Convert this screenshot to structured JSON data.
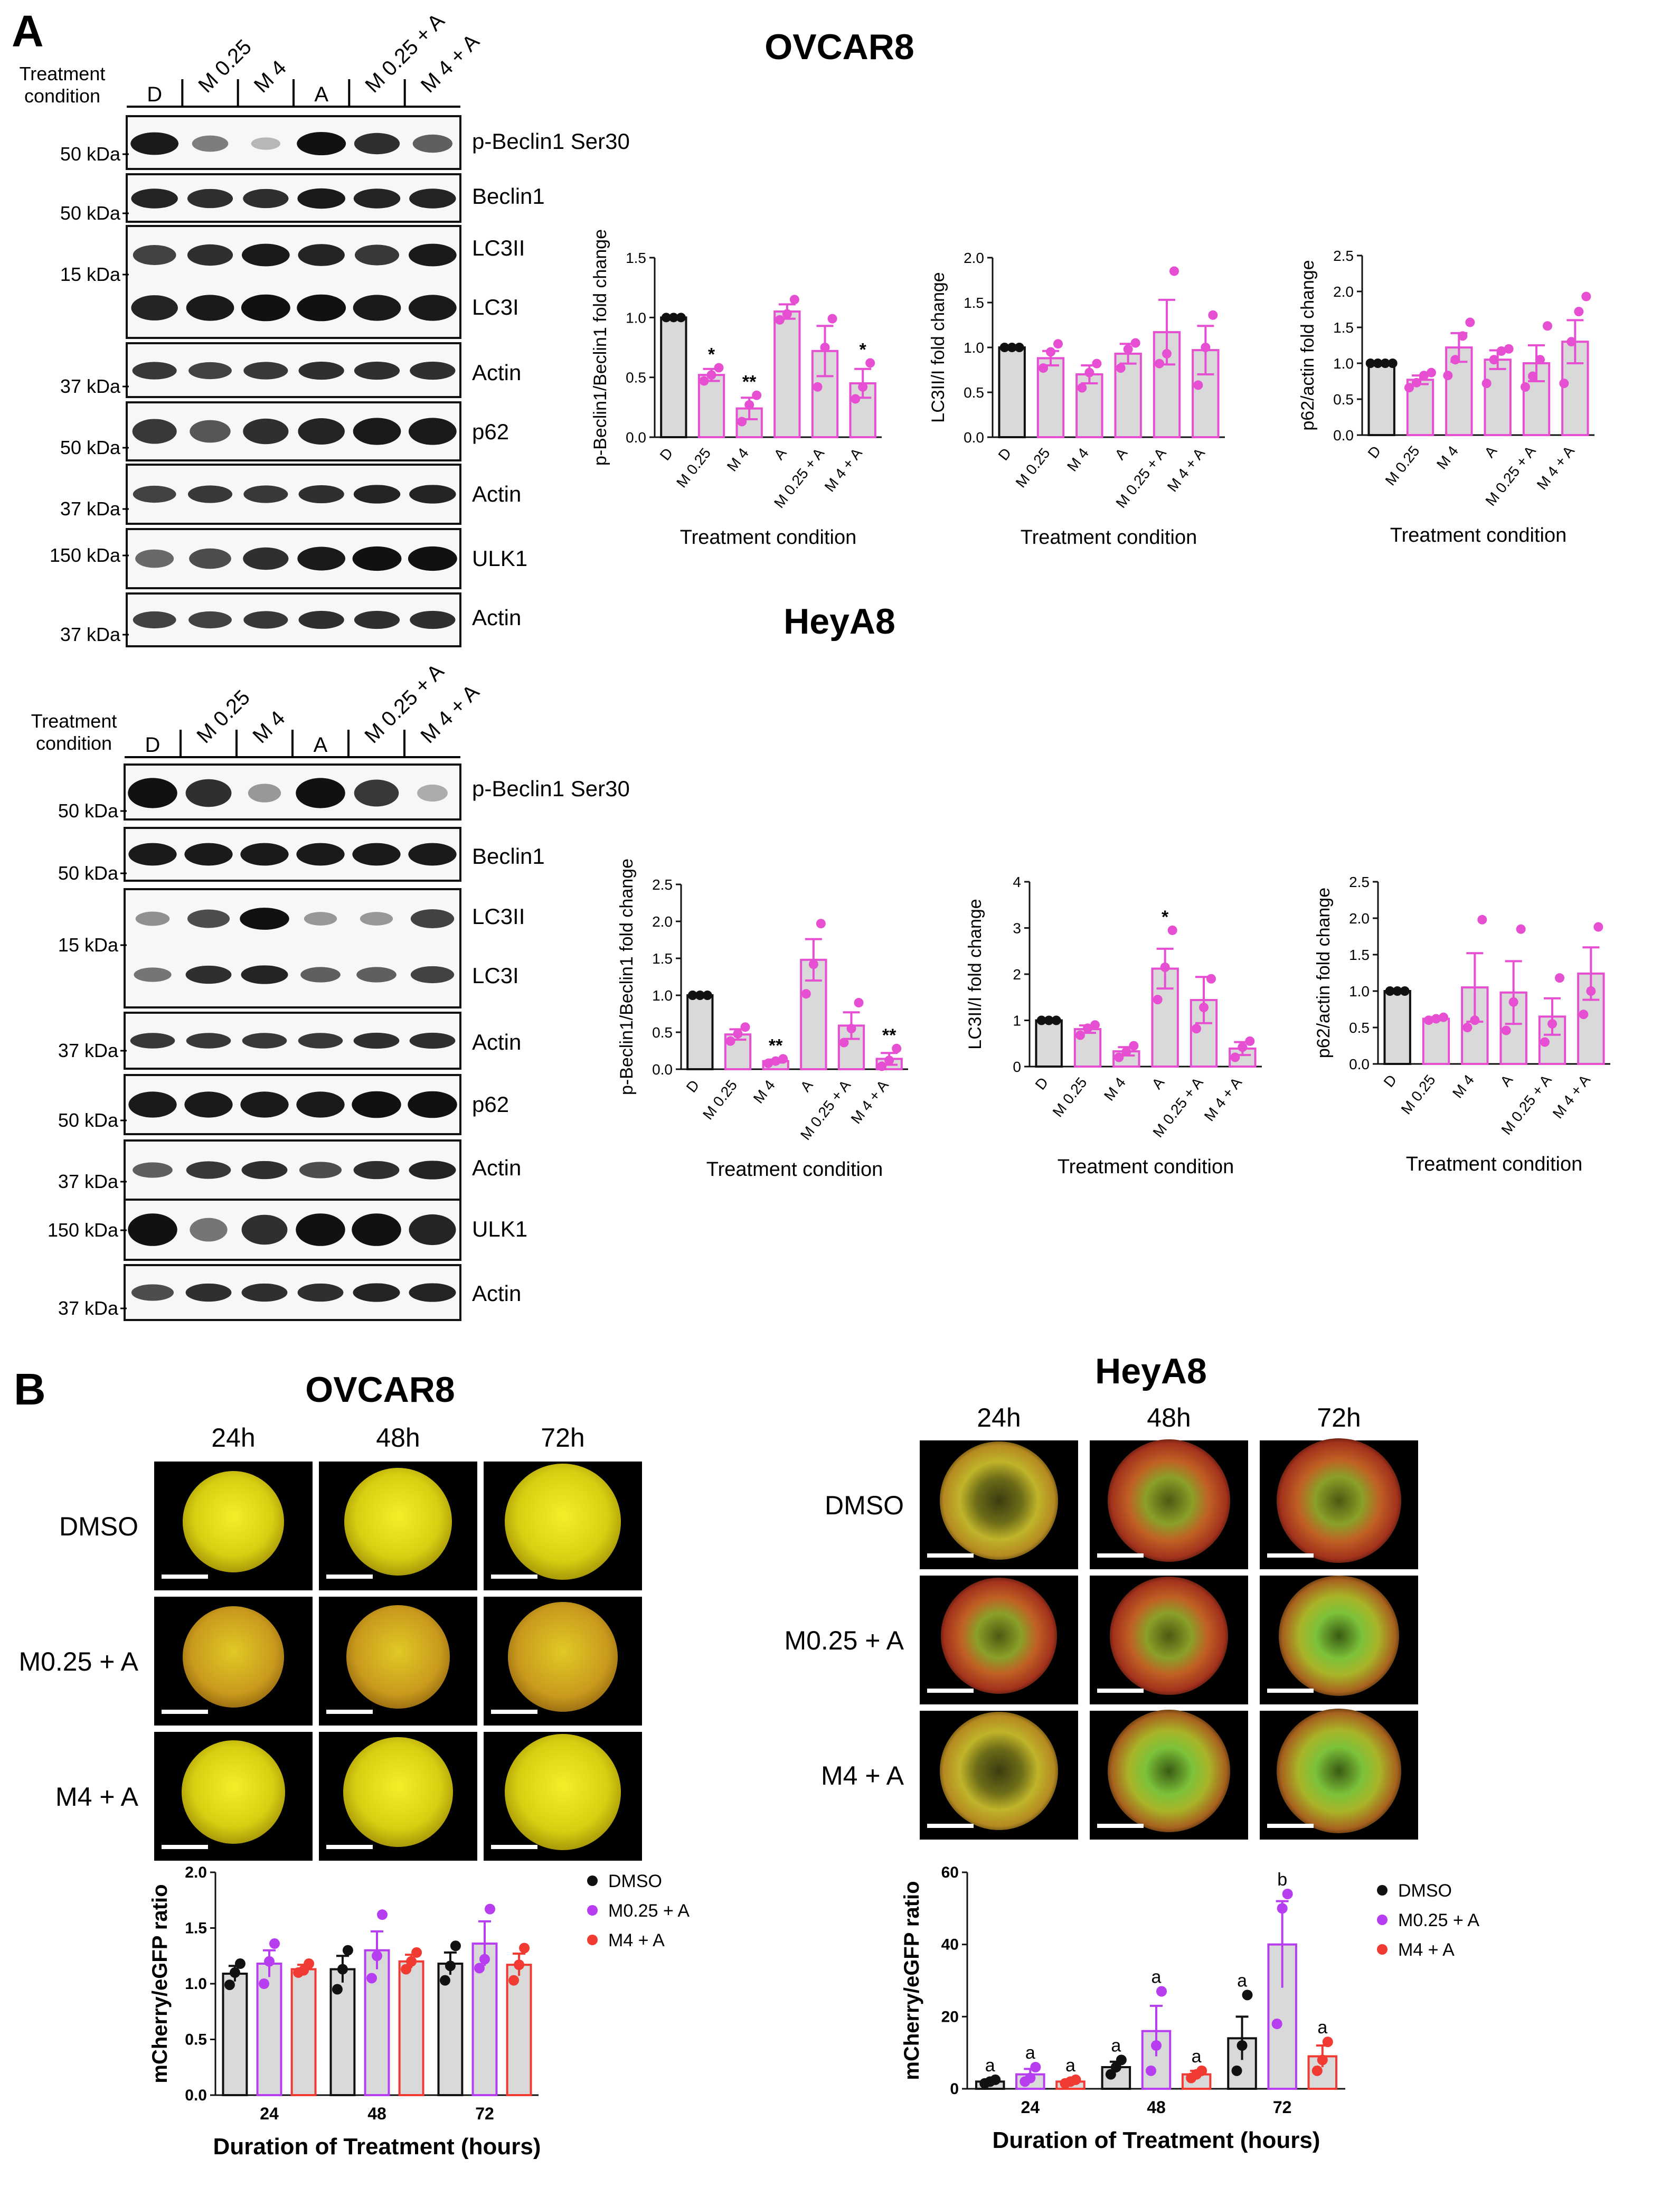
{
  "figure": {
    "panel_a_label": "A",
    "panel_b_label": "B",
    "lanes": [
      "D",
      "M 0.25",
      "M 4",
      "A",
      "M 0.25 + A",
      "M 4 + A"
    ],
    "treatment_condition": "Treatment condition",
    "colors": {
      "drug": "#e64fd2",
      "control": "#111111",
      "bar_fill": "#d9d9d9",
      "dmso": "#111111",
      "m025a": "#b63ef0",
      "m4a": "#f03a32"
    }
  },
  "ovcar8_blots": {
    "title": "OVCAR8",
    "header": "Treatment condition",
    "markers": [
      "50 kDa",
      "50 kDa",
      "15 kDa",
      "37 kDa",
      "50 kDa",
      "37 kDa",
      "150 kDa",
      "37 kDa"
    ],
    "proteins": [
      "p-Beclin1 Ser30",
      "Beclin1",
      "LC3II",
      "LC3I",
      "Actin",
      "p62",
      "Actin",
      "ULK1",
      "Actin"
    ]
  },
  "heya8_blots": {
    "title": "HeyA8",
    "header": "Treatment condition",
    "markers": [
      "50 kDa",
      "50 kDa",
      "15 kDa",
      "37 kDa",
      "50 kDa",
      "37 kDa",
      "150 kDa",
      "37 kDa"
    ],
    "proteins": [
      "p-Beclin1 Ser30",
      "Beclin1",
      "LC3II",
      "LC3I",
      "Actin",
      "p62",
      "Actin",
      "ULK1",
      "Actin"
    ]
  },
  "chart_data": [
    {
      "id": "ovcar8-pbeclin",
      "type": "bar",
      "categories": [
        "D",
        "M 0.25",
        "M 4",
        "A",
        "M 0.25 + A",
        "M 4 + A"
      ],
      "values": [
        1.0,
        0.52,
        0.24,
        1.05,
        0.72,
        0.45
      ],
      "errors": [
        0.0,
        0.05,
        0.09,
        0.06,
        0.21,
        0.12
      ],
      "points": [
        [
          1,
          1,
          1
        ],
        [
          0.47,
          0.52,
          0.58
        ],
        [
          0.13,
          0.27,
          0.35
        ],
        [
          0.98,
          1.03,
          1.15
        ],
        [
          0.42,
          0.75,
          0.99
        ],
        [
          0.32,
          0.42,
          0.62
        ]
      ],
      "significance": [
        "",
        "*",
        "**",
        "",
        "",
        "*"
      ],
      "ylabel": "p-Beclin1/Beclin1 fold change",
      "xlabel": "Treatment condition",
      "ylim": [
        0,
        1.5
      ],
      "yticks": [
        "0.0",
        "0.5",
        "1.0",
        "1.5"
      ]
    },
    {
      "id": "ovcar8-lc3",
      "type": "bar",
      "categories": [
        "D",
        "M 0.25",
        "M 4",
        "A",
        "M 0.25 + A",
        "M 4 + A"
      ],
      "values": [
        1.0,
        0.88,
        0.7,
        0.93,
        1.17,
        0.97
      ],
      "errors": [
        0.0,
        0.08,
        0.1,
        0.11,
        0.36,
        0.27
      ],
      "points": [
        [
          1,
          1,
          1
        ],
        [
          0.77,
          0.95,
          1.04
        ],
        [
          0.55,
          0.72,
          0.82
        ],
        [
          0.77,
          0.98,
          1.05
        ],
        [
          0.82,
          0.93,
          1.85
        ],
        [
          0.58,
          1.0,
          1.36
        ]
      ],
      "significance": [
        "",
        "",
        "",
        "",
        "",
        ""
      ],
      "ylabel": "LC3II/I fold change",
      "xlabel": "Treatment condition",
      "ylim": [
        0,
        2.0
      ],
      "yticks": [
        "0.0",
        "0.5",
        "1.0",
        "1.5",
        "2.0"
      ]
    },
    {
      "id": "ovcar8-p62",
      "type": "bar",
      "categories": [
        "D",
        "M 0.25",
        "M 4",
        "A",
        "M 0.25 + A",
        "M 4 + A"
      ],
      "values": [
        1.0,
        0.77,
        1.22,
        1.05,
        1.0,
        1.3
      ],
      "errors": [
        0.0,
        0.06,
        0.2,
        0.13,
        0.25,
        0.3
      ],
      "points": [
        [
          1,
          1,
          1,
          1
        ],
        [
          0.66,
          0.73,
          0.83,
          0.87
        ],
        [
          0.83,
          1.05,
          1.38,
          1.57
        ],
        [
          0.72,
          1.05,
          1.17,
          1.2
        ],
        [
          0.67,
          0.82,
          1.05,
          1.52
        ],
        [
          0.72,
          1.3,
          1.72,
          1.93
        ]
      ],
      "significance": [
        "",
        "",
        "",
        "",
        "",
        ""
      ],
      "ylabel": "p62/actin fold change",
      "xlabel": "Treatment condition",
      "ylim": [
        0,
        2.5
      ],
      "yticks": [
        "0.0",
        "0.5",
        "1.0",
        "1.5",
        "2.0",
        "2.5"
      ]
    },
    {
      "id": "heya8-pbeclin",
      "type": "bar",
      "categories": [
        "D",
        "M 0.25",
        "M 4",
        "A",
        "M 0.25 + A",
        "M 4 + A"
      ],
      "values": [
        1.0,
        0.47,
        0.11,
        1.48,
        0.59,
        0.14
      ],
      "errors": [
        0.0,
        0.07,
        0.02,
        0.28,
        0.18,
        0.08
      ],
      "points": [
        [
          1,
          1,
          1
        ],
        [
          0.38,
          0.48,
          0.57
        ],
        [
          0.08,
          0.11,
          0.14
        ],
        [
          1.02,
          1.42,
          1.97
        ],
        [
          0.36,
          0.55,
          0.9
        ],
        [
          0.04,
          0.12,
          0.28
        ]
      ],
      "significance": [
        "",
        "",
        "**",
        "",
        "",
        "**"
      ],
      "ylabel": "p-Beclin1/Beclin1 fold change",
      "xlabel": "Treatment condition",
      "ylim": [
        0,
        2.5
      ],
      "yticks": [
        "0.0",
        "0.5",
        "1.0",
        "1.5",
        "2.0",
        "2.5"
      ]
    },
    {
      "id": "heya8-lc3",
      "type": "bar",
      "categories": [
        "D",
        "M 0.25",
        "M 4",
        "A",
        "M 0.25 + A",
        "M 4 + A"
      ],
      "values": [
        1.0,
        0.81,
        0.33,
        2.12,
        1.44,
        0.39
      ],
      "errors": [
        0.0,
        0.08,
        0.09,
        0.43,
        0.5,
        0.14
      ],
      "points": [
        [
          1,
          1,
          1
        ],
        [
          0.68,
          0.83,
          0.9
        ],
        [
          0.2,
          0.32,
          0.45
        ],
        [
          1.45,
          2.15,
          2.95
        ],
        [
          0.82,
          1.28,
          1.9
        ],
        [
          0.2,
          0.42,
          0.55
        ]
      ],
      "significance": [
        "",
        "",
        "",
        "*",
        "",
        ""
      ],
      "ylabel": "LC3II/I fold change",
      "xlabel": "Treatment condition",
      "ylim": [
        0,
        4
      ],
      "yticks": [
        "0",
        "1",
        "2",
        "3",
        "4"
      ]
    },
    {
      "id": "heya8-p62",
      "type": "bar",
      "categories": [
        "D",
        "M 0.25",
        "M 4",
        "A",
        "M 0.25 + A",
        "M 4 + A"
      ],
      "values": [
        1.0,
        0.62,
        1.05,
        0.98,
        0.65,
        1.24
      ],
      "errors": [
        0.0,
        0.02,
        0.47,
        0.43,
        0.25,
        0.36
      ],
      "points": [
        [
          1,
          1,
          1
        ],
        [
          0.6,
          0.62,
          0.64
        ],
        [
          0.5,
          0.6,
          1.98
        ],
        [
          0.46,
          0.85,
          1.85
        ],
        [
          0.3,
          0.55,
          1.18
        ],
        [
          0.68,
          1.0,
          1.88
        ]
      ],
      "significance": [
        "",
        "",
        "",
        "",
        "",
        ""
      ],
      "ylabel": "p62/actin fold change",
      "xlabel": "Treatment condition",
      "ylim": [
        0,
        2.5
      ],
      "yticks": [
        "0.0",
        "0.5",
        "1.0",
        "1.5",
        "2.0",
        "2.5"
      ]
    },
    {
      "id": "ovcar8-ratio",
      "type": "bar",
      "categories": [
        "24",
        "48",
        "72"
      ],
      "series": [
        {
          "name": "DMSO",
          "values": [
            1.09,
            1.13,
            1.18
          ],
          "errors": [
            0.07,
            0.12,
            0.1
          ],
          "points": [
            [
              0.99,
              1.1,
              1.18
            ],
            [
              0.95,
              1.13,
              1.3
            ],
            [
              1.03,
              1.16,
              1.34
            ]
          ]
        },
        {
          "name": "M0.25 + A",
          "values": [
            1.18,
            1.3,
            1.36
          ],
          "errors": [
            0.12,
            0.17,
            0.2
          ],
          "points": [
            [
              1.0,
              1.2,
              1.36
            ],
            [
              1.05,
              1.25,
              1.62
            ],
            [
              1.14,
              1.22,
              1.67
            ]
          ]
        },
        {
          "name": "M4 + A",
          "values": [
            1.13,
            1.2,
            1.17
          ],
          "errors": [
            0.04,
            0.06,
            0.1
          ],
          "points": [
            [
              1.1,
              1.12,
              1.18
            ],
            [
              1.13,
              1.2,
              1.28
            ],
            [
              1.03,
              1.17,
              1.32
            ]
          ]
        }
      ],
      "ylabel": "mCherry/eGFP ratio",
      "xlabel": "Duration of Treatment (hours)",
      "ylim": [
        0,
        2.0
      ],
      "yticks": [
        "0.0",
        "0.5",
        "1.0",
        "1.5",
        "2.0"
      ]
    },
    {
      "id": "heya8-ratio",
      "type": "bar",
      "categories": [
        "24",
        "48",
        "72"
      ],
      "series": [
        {
          "name": "DMSO",
          "values": [
            2,
            6,
            14
          ],
          "errors": [
            0.5,
            1.5,
            6
          ],
          "points": [
            [
              1.5,
              2,
              2.5
            ],
            [
              4,
              6,
              8
            ],
            [
              5,
              12,
              26
            ]
          ],
          "letters": [
            "a",
            "a",
            "a"
          ]
        },
        {
          "name": "M0.25 + A",
          "values": [
            4,
            16,
            40
          ],
          "errors": [
            1.5,
            7,
            12
          ],
          "points": [
            [
              2,
              3,
              6
            ],
            [
              5,
              12,
              27
            ],
            [
              18,
              50,
              54
            ]
          ],
          "letters": [
            "a",
            "a",
            "b"
          ]
        },
        {
          "name": "M4 + A",
          "values": [
            2,
            4,
            9
          ],
          "errors": [
            0.4,
            1,
            3
          ],
          "points": [
            [
              1.5,
              2,
              2.5
            ],
            [
              3,
              4,
              5
            ],
            [
              5,
              8,
              13
            ]
          ],
          "letters": [
            "a",
            "a",
            "a"
          ]
        }
      ],
      "ylabel": "mCherry/eGFP ratio",
      "xlabel": "Duration of Treatment (hours)",
      "ylim": [
        0,
        60
      ],
      "yticks": [
        "0",
        "20",
        "40",
        "60"
      ]
    }
  ],
  "microscopy": {
    "ovcar8": {
      "title": "OVCAR8",
      "times": [
        "24h",
        "48h",
        "72h"
      ],
      "rows": [
        "DMSO",
        "M0.25 + A",
        "M4 + A"
      ]
    },
    "heya8": {
      "title": "HeyA8",
      "times": [
        "24h",
        "48h",
        "72h"
      ],
      "rows": [
        "DMSO",
        "M0.25 + A",
        "M4 + A"
      ]
    }
  },
  "legend": [
    "DMSO",
    "M0.25 + A",
    "M4 + A"
  ]
}
